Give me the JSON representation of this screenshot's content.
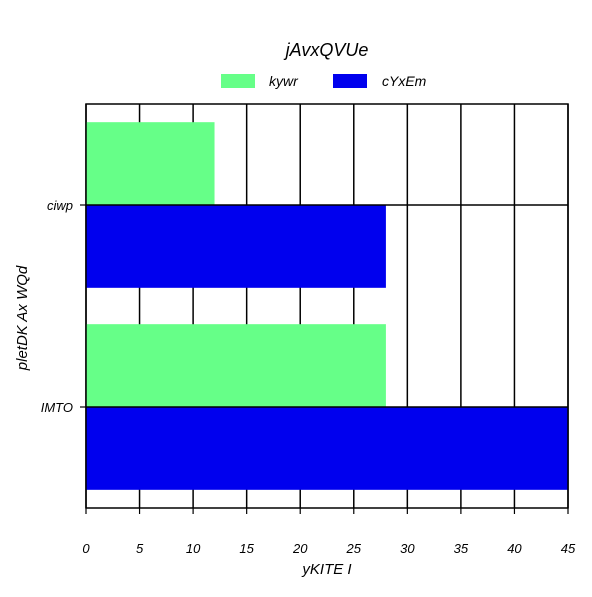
{
  "chart_data": {
    "type": "bar",
    "orientation": "horizontal",
    "title": "jAvxQVUe",
    "xlabel": "yKITE I",
    "ylabel": "pletDK  Ax WQd",
    "categories": [
      "ciwp",
      "IMTO"
    ],
    "series": [
      {
        "name": "kywr",
        "values": [
          12,
          28
        ],
        "color": "#66ff88"
      },
      {
        "name": "cYxEm",
        "values": [
          28,
          45
        ],
        "color": "#0000ee"
      }
    ],
    "xlim": [
      0,
      45
    ],
    "xticks": [
      "0",
      "5",
      "10",
      "15",
      "20",
      "25",
      "30",
      "35",
      "40",
      "45"
    ],
    "grid": true,
    "legend_position": "top-center"
  }
}
